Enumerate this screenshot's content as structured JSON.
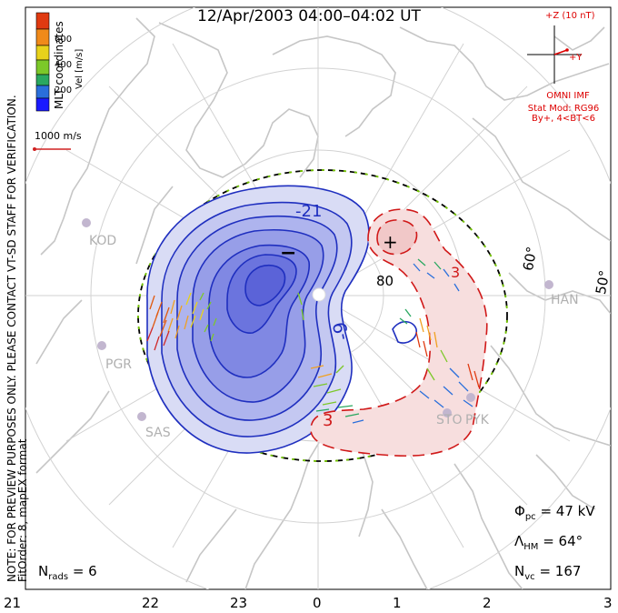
{
  "title": "12/Apr/2003 04:00–04:02 UT",
  "note_lines": [
    "NOTE: FOR PREVIEW PURPOSES ONLY. PLEASE CONTACT VT-SD STAFF FOR VERIFICATION.",
    "FitOrder: 8, mapEX format"
  ],
  "coords_label": "MLT coordinates",
  "colorbar": {
    "label": "Vel [m/s]",
    "ticks": [
      "600",
      "400",
      "200"
    ],
    "colors": [
      "#1a1aff",
      "#2a6fdb",
      "#2aa860",
      "#7cc829",
      "#e8d21b",
      "#f08a1a",
      "#e03a10"
    ]
  },
  "vector_key": "1000 m/s",
  "imf": {
    "z_label": "+Z (10 nT)",
    "y_label": "+Y",
    "source": "OMNI IMF",
    "model": "Stat Mod: RG96",
    "condition": "By+, 4<BT<6"
  },
  "stats": {
    "phi_pc_label": "Φ",
    "phi_pc_sub": "pc",
    "phi_pc_value": "= 47 kV",
    "lambda_label": "Λ",
    "lambda_sub": "HM",
    "lambda_value": "= 64°",
    "nvc_label": "N",
    "nvc_sub": "vc",
    "nvc_value": "= 167",
    "nrads_label": "N",
    "nrads_sub": "rads",
    "nrads_value": "= 6"
  },
  "mlt_labels": [
    "21",
    "22",
    "23",
    "0",
    "1",
    "2",
    "3"
  ],
  "lat_labels": [
    "80",
    "60°",
    "50°"
  ],
  "stations": [
    "KOD",
    "PGR",
    "SAS",
    "HAN",
    "STO",
    "PYK"
  ],
  "contour_labels": {
    "neg_top": "-21",
    "neg_mid": "-9",
    "pos_top": "3",
    "pos_bottom": "3"
  },
  "extrema_marks": {
    "minimum": "−",
    "maximum": "+"
  },
  "colors": {
    "negative": "#1f2fbf",
    "positive": "#d01818",
    "coast": "#c8c8c8",
    "grid": "#cfcfcf"
  }
}
